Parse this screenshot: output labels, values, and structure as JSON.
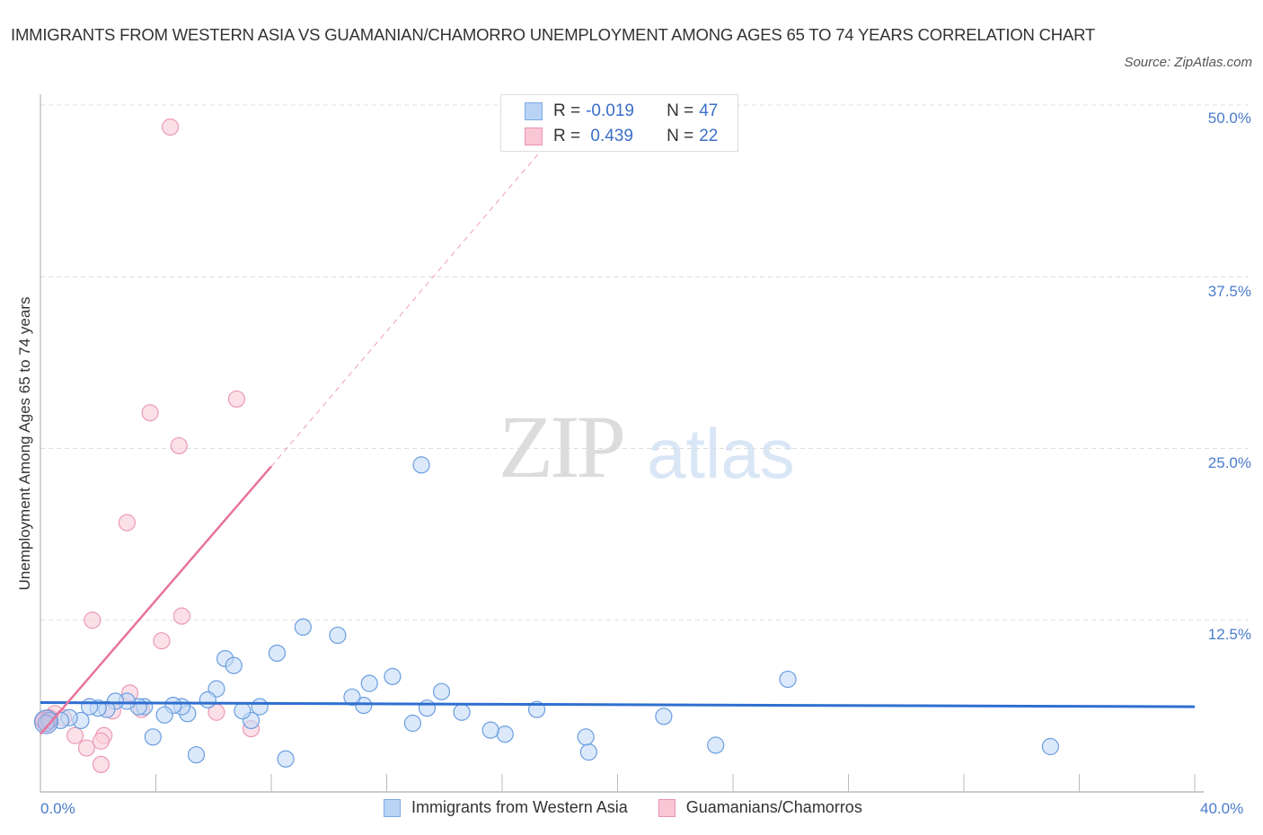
{
  "header": {
    "title": "IMMIGRANTS FROM WESTERN ASIA VS GUAMANIAN/CHAMORRO UNEMPLOYMENT AMONG AGES 65 TO 74 YEARS CORRELATION CHART",
    "source": "Source: ZipAtlas.com"
  },
  "watermark": {
    "zip": "ZIP",
    "atlas": "atlas"
  },
  "axes": {
    "ylabel": "Unemployment Among Ages 65 to 74 years",
    "yticks": [
      "50.0%",
      "37.5%",
      "25.0%",
      "12.5%"
    ],
    "xtick_left": "0.0%",
    "xtick_right": "40.0%"
  },
  "legend": {
    "rows": [
      {
        "r_label": "R = ",
        "r_value": "-0.019",
        "n_label": "N = ",
        "n_value": "47",
        "color": "#b9d3f5",
        "border": "#7ea9e6"
      },
      {
        "r_label": "R = ",
        "r_value": " 0.439",
        "n_label": "N = ",
        "n_value": "22",
        "color": "#f9c6d6",
        "border": "#eb94b0"
      }
    ]
  },
  "bottom_legend": [
    {
      "label": "Immigrants from Western Asia",
      "color": "#b9d3f5",
      "border": "#7ea9e6"
    },
    {
      "label": "Guamanians/Chamorros",
      "color": "#f9c6d6",
      "border": "#eb94b0"
    }
  ],
  "colors": {
    "blue_fill": "#c4dbf7",
    "blue_stroke": "#6a9ee0",
    "blue_line": "#2f6fd0",
    "pink_fill": "#f9cfdc",
    "pink_stroke": "#ec9ab4",
    "pink_line": "#e8739a",
    "tick_label": "#4a7ccc",
    "grid": "#dddddd"
  },
  "chart_data": {
    "type": "scatter",
    "title": "IMMIGRANTS FROM WESTERN ASIA VS GUAMANIAN/CHAMORRO UNEMPLOYMENT AMONG AGES 65 TO 74 YEARS CORRELATION CHART",
    "xlabel": "",
    "ylabel": "Unemployment Among Ages 65 to 74 years",
    "xlim": [
      0,
      40
    ],
    "ylim": [
      0,
      52
    ],
    "yticks": [
      12.5,
      25.0,
      37.5,
      50.0
    ],
    "xticks_labeled": [
      0,
      40
    ],
    "grid": true,
    "legend_position": "top-center",
    "series": [
      {
        "name": "Immigrants from Western Asia",
        "R": -0.019,
        "N": 47,
        "trend": {
          "x": [
            0,
            40
          ],
          "y": [
            6.5,
            6.2
          ]
        },
        "points": [
          [
            13.2,
            23.8
          ],
          [
            25.9,
            8.2
          ],
          [
            35.0,
            3.3
          ],
          [
            23.4,
            3.4
          ],
          [
            21.6,
            5.5
          ],
          [
            19.0,
            2.9
          ],
          [
            18.9,
            4.0
          ],
          [
            17.2,
            6.0
          ],
          [
            16.1,
            4.2
          ],
          [
            15.6,
            4.5
          ],
          [
            14.6,
            5.8
          ],
          [
            13.9,
            7.3
          ],
          [
            13.4,
            6.1
          ],
          [
            12.9,
            5.0
          ],
          [
            12.2,
            8.4
          ],
          [
            11.4,
            7.9
          ],
          [
            11.2,
            6.3
          ],
          [
            10.8,
            6.9
          ],
          [
            10.3,
            11.4
          ],
          [
            9.1,
            12.0
          ],
          [
            8.2,
            10.1
          ],
          [
            8.5,
            2.4
          ],
          [
            7.6,
            6.2
          ],
          [
            7.3,
            5.2
          ],
          [
            7.0,
            5.9
          ],
          [
            6.1,
            7.5
          ],
          [
            6.4,
            9.7
          ],
          [
            6.7,
            9.2
          ],
          [
            5.8,
            6.7
          ],
          [
            5.4,
            2.7
          ],
          [
            5.1,
            5.7
          ],
          [
            4.9,
            6.2
          ],
          [
            4.6,
            6.3
          ],
          [
            4.3,
            5.6
          ],
          [
            3.9,
            4.0
          ],
          [
            3.6,
            6.2
          ],
          [
            3.4,
            6.2
          ],
          [
            3.0,
            6.6
          ],
          [
            2.6,
            6.6
          ],
          [
            2.3,
            6.0
          ],
          [
            2.0,
            6.1
          ],
          [
            1.7,
            6.2
          ],
          [
            1.4,
            5.2
          ],
          [
            1.0,
            5.4
          ],
          [
            0.7,
            5.2
          ],
          [
            0.3,
            5.2
          ],
          [
            0.2,
            5.0
          ]
        ]
      },
      {
        "name": "Guamanians/Chamorros",
        "R": 0.439,
        "N": 22,
        "trend": {
          "x": [
            0,
            8.0
          ],
          "y": [
            4.2,
            23.7
          ],
          "dashed_extension_to": [
            17.6,
            47.3
          ]
        },
        "points": [
          [
            4.5,
            48.4
          ],
          [
            6.8,
            28.6
          ],
          [
            3.8,
            27.6
          ],
          [
            4.8,
            25.2
          ],
          [
            3.0,
            19.6
          ],
          [
            4.9,
            12.8
          ],
          [
            1.8,
            12.5
          ],
          [
            4.2,
            11.0
          ],
          [
            3.1,
            7.2
          ],
          [
            6.1,
            5.8
          ],
          [
            3.5,
            6.0
          ],
          [
            7.3,
            4.6
          ],
          [
            2.2,
            4.1
          ],
          [
            1.6,
            3.2
          ],
          [
            2.5,
            5.9
          ],
          [
            2.1,
            3.7
          ],
          [
            1.2,
            4.1
          ],
          [
            2.1,
            2.0
          ],
          [
            0.5,
            5.7
          ],
          [
            0.3,
            5.4
          ],
          [
            0.8,
            5.4
          ],
          [
            0.1,
            5.2
          ]
        ]
      }
    ]
  }
}
